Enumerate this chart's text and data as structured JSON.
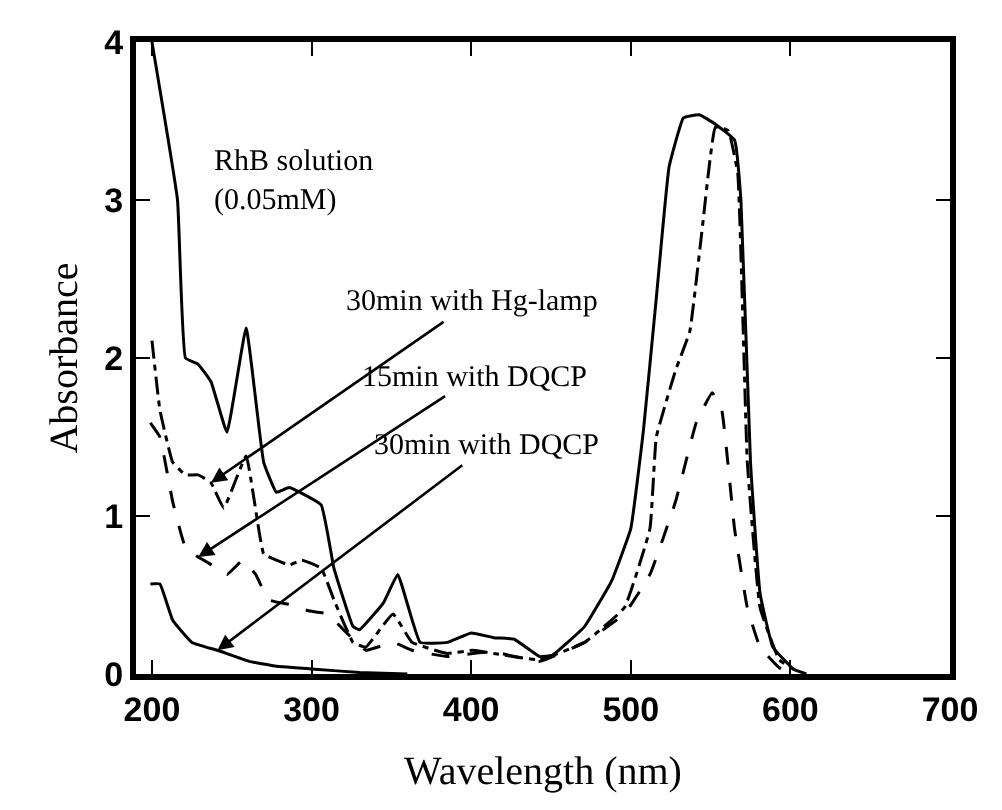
{
  "chart_data": {
    "type": "line",
    "xlabel": "Wavelength (nm)",
    "ylabel": "Absorbance",
    "xlim": [
      190,
      700
    ],
    "ylim": [
      0,
      4
    ],
    "xticks": [
      200,
      300,
      400,
      500,
      600,
      700
    ],
    "yticks": [
      0,
      1,
      2,
      3,
      4
    ],
    "marker": "none",
    "series": [
      {
        "color": "#000000",
        "line_style": "solid",
        "x": [
          200,
          216,
          221,
          229,
          237,
          247,
          259,
          270,
          278,
          286,
          306,
          314,
          326,
          330,
          345,
          354,
          368,
          385,
          400,
          414,
          427,
          443,
          451,
          471,
          488,
          500,
          508,
          516,
          524,
          533,
          543,
          553,
          565,
          569,
          575,
          581,
          589,
          602,
          610
        ],
        "values": [
          4.0,
          3.0,
          2.0,
          1.96,
          1.85,
          1.53,
          2.19,
          1.34,
          1.15,
          1.18,
          1.07,
          0.67,
          0.3,
          0.28,
          0.45,
          0.63,
          0.2,
          0.2,
          0.26,
          0.23,
          0.22,
          0.11,
          0.12,
          0.3,
          0.59,
          0.92,
          1.55,
          2.38,
          3.21,
          3.52,
          3.54,
          3.48,
          3.38,
          3.0,
          1.34,
          0.51,
          0.17,
          0.03,
          0.0
        ]
      },
      {
        "color": "#000000",
        "line_style": "dashdot",
        "x": [
          200,
          205,
          213,
          221,
          229,
          237,
          245,
          259,
          270,
          278,
          286,
          294,
          306,
          314,
          326,
          334,
          351,
          363,
          385,
          401,
          414,
          443,
          471,
          496,
          512,
          516,
          528,
          537,
          545,
          553,
          561,
          567,
          573,
          581,
          593,
          602
        ],
        "values": [
          2.11,
          1.67,
          1.34,
          1.26,
          1.26,
          1.21,
          1.05,
          1.38,
          0.76,
          0.72,
          0.69,
          0.72,
          0.67,
          0.47,
          0.2,
          0.17,
          0.38,
          0.2,
          0.13,
          0.15,
          0.13,
          0.09,
          0.2,
          0.42,
          0.92,
          1.5,
          1.92,
          2.17,
          2.84,
          3.46,
          3.44,
          3.17,
          1.34,
          0.42,
          0.09,
          0.03
        ]
      },
      {
        "color": "#000000",
        "line_style": "dashed",
        "x": [
          199,
          205,
          213,
          221,
          229,
          241,
          247,
          257,
          265,
          273,
          286,
          298,
          310,
          322,
          334,
          351,
          363,
          385,
          401,
          414,
          443,
          471,
          496,
          512,
          528,
          541,
          551,
          557,
          565,
          573,
          581,
          593,
          602
        ],
        "values": [
          1.59,
          1.5,
          1.09,
          0.8,
          0.74,
          0.67,
          0.63,
          0.72,
          0.63,
          0.47,
          0.44,
          0.4,
          0.38,
          0.26,
          0.15,
          0.2,
          0.15,
          0.11,
          0.13,
          0.14,
          0.08,
          0.2,
          0.38,
          0.63,
          1.09,
          1.59,
          1.78,
          1.67,
          0.92,
          0.42,
          0.17,
          0.04,
          0.0
        ]
      },
      {
        "color": "#000000",
        "line_style": "solid",
        "x": [
          199,
          205,
          213,
          225,
          241,
          261,
          277,
          302,
          330,
          360
        ],
        "values": [
          0.57,
          0.57,
          0.34,
          0.2,
          0.15,
          0.08,
          0.05,
          0.03,
          0.01,
          0.0
        ]
      }
    ],
    "annotations": [
      "RhB solution\n(0.05mM)",
      {
        "text": "30min with Hg-lamp",
        "x": 237,
        "y": 1.21
      },
      {
        "text": "15min with DQCP",
        "x": 229,
        "y": 0.74
      },
      {
        "text": "30min with DQCP",
        "x": 241,
        "y": 0.15
      }
    ]
  }
}
